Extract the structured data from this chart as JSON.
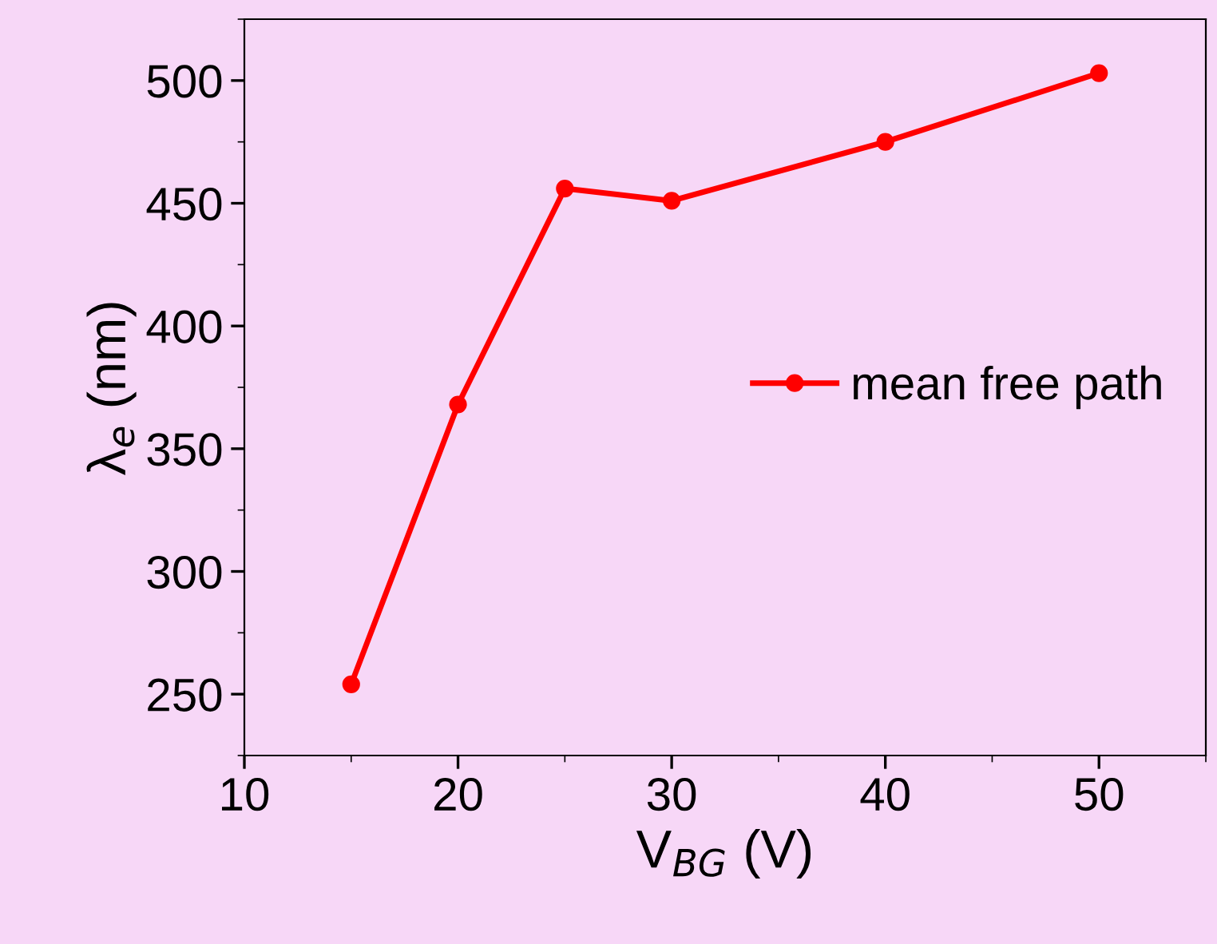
{
  "chart_data": {
    "type": "line",
    "xlabel": "V$_{BG}$ (V)",
    "ylabel": "λ$_{e}$ (nm)",
    "x": [
      15,
      20,
      25,
      30,
      40,
      50
    ],
    "series": [
      {
        "name": "mean free path",
        "color": "#ff0000",
        "values": [
          254,
          368,
          456,
          451,
          475,
          503
        ]
      }
    ],
    "xlim": [
      10,
      55
    ],
    "xticks": [
      10,
      20,
      30,
      40,
      50
    ],
    "ylim": [
      225,
      525
    ],
    "yticks": [
      250,
      300,
      350,
      400,
      450,
      500
    ],
    "marker": "circle",
    "line_style": "solid",
    "legend": "right",
    "grid": false
  }
}
